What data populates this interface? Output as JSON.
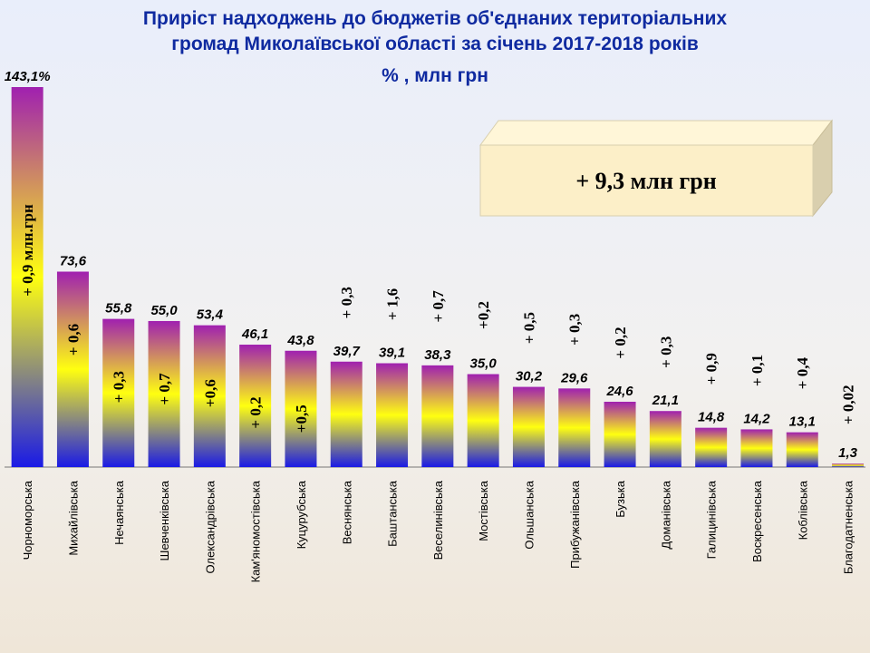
{
  "chart_data": {
    "type": "bar",
    "title": "Приріст надходжень до бюджетів об'єднаних територіальних громад Миколаївської області  за січень 2017-2018 років",
    "subtitle": "% , млн грн",
    "categories": [
      "Чорноморська",
      "Михайлівська",
      "Нечаянська",
      "Шевченківська",
      "Олександрівська",
      "Кам'яномостівська",
      "Куцурубська",
      "Веснянська",
      "Баштанська",
      "Веселинівська",
      "Мостівська",
      "Ольшанська",
      "Прибужанівська",
      "Бузька",
      "Доманівська",
      "Галицинівська",
      "Воскресенська",
      "Коблівська",
      "Благодатненська"
    ],
    "values": [
      143.1,
      73.6,
      55.8,
      55.0,
      53.4,
      46.1,
      43.8,
      39.7,
      39.1,
      38.3,
      35.0,
      30.2,
      29.6,
      24.6,
      21.1,
      14.8,
      14.2,
      13.1,
      1.3
    ],
    "value_labels": [
      "143,1%",
      "73,6",
      "55,8",
      "55,0",
      "53,4",
      "46,1",
      "43,8",
      "39,7",
      "39,1",
      "38,3",
      "35,0",
      "30,2",
      "29,6",
      "24,6",
      "21,1",
      "14,8",
      "14,2",
      "13,1",
      "1,3"
    ],
    "annotations": [
      "+ 0,9 млн.грн",
      "+ 0,6",
      "+ 0,3",
      "+ 0,7",
      "+0,6",
      "+ 0,2",
      "+0,5",
      "+ 0,3",
      "+ 1,6",
      "+ 0,7",
      "+0,2",
      "+ 0,5",
      "+ 0,3",
      "+ 0,2",
      "+ 0,3",
      "+ 0,9",
      "+ 0,1",
      "+ 0,4",
      "+ 0,02"
    ],
    "total_label": "+ 9,3 млн грн",
    "colors": [
      "#a020b0",
      "#ffff10",
      "#1a1ae6"
    ]
  }
}
